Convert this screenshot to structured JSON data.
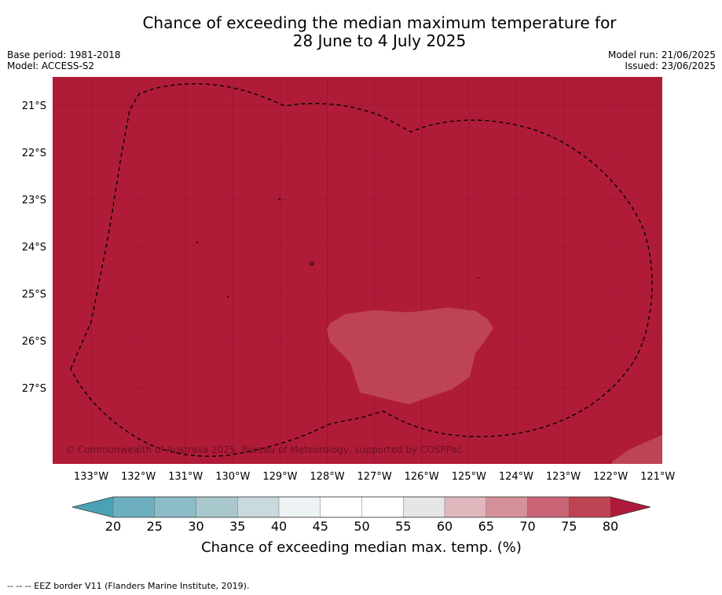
{
  "title": {
    "line1": "Chance of exceeding the median maximum temperature for",
    "line2": "28 June to 4 July 2025"
  },
  "meta": {
    "base_period": "Base period: 1981-2018",
    "model": "Model: ACCESS-S2",
    "model_run": "Model run: 21/06/2025",
    "issued": "Issued: 23/06/2025"
  },
  "map": {
    "background_color": "#b01c38",
    "lat_ticks": [
      "21°S",
      "22°S",
      "23°S",
      "24°S",
      "25°S",
      "26°S",
      "27°S"
    ],
    "lon_ticks": [
      "133°W",
      "132°W",
      "131°W",
      "130°W",
      "129°W",
      "128°W",
      "127°W",
      "126°W",
      "125°W",
      "124°W",
      "123°W",
      "122°W",
      "121°W"
    ],
    "copyright": "© Commonwealth of Australia 2025, Bureau of Meteorology, supported by COSPPac"
  },
  "colorbar": {
    "ticks": [
      "20",
      "25",
      "30",
      "35",
      "40",
      "45",
      "50",
      "55",
      "60",
      "65",
      "70",
      "75",
      "80"
    ],
    "colors": [
      "#6eafbf",
      "#8cbcc7",
      "#a9c8ce",
      "#c9dadf",
      "#edf2f4",
      "#ffffff",
      "#ffffff",
      "#e6e6e6",
      "#e0b7bd",
      "#d69099",
      "#c96574",
      "#be4454"
    ],
    "under_color": "#4aa3b5",
    "over_color": "#ad1a3a",
    "label": "Chance of exceeding median max. temp. (%)"
  },
  "footnote": "--  --  -- EEZ border V11 (Flanders Marine Institute, 2019)."
}
